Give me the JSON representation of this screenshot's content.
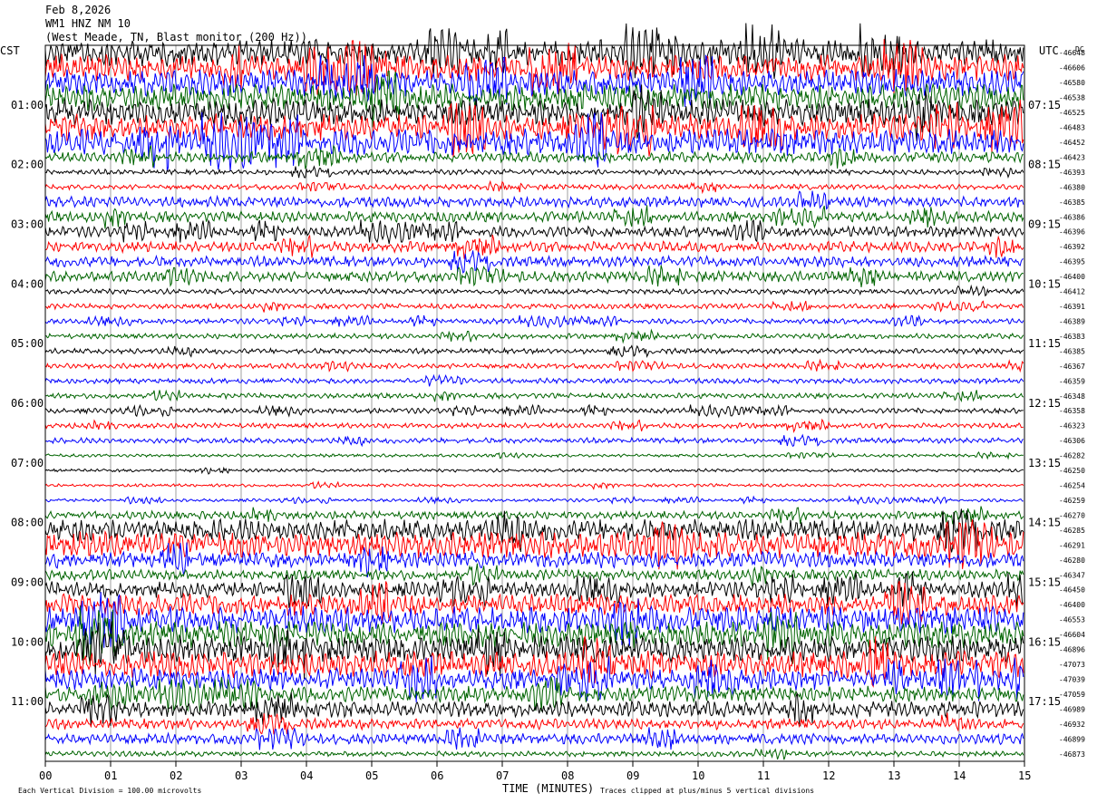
{
  "header": {
    "date": "Feb 8,2026",
    "station": "WM1 HNZ NM 10",
    "location": "(West Meade, TN, Blast monitor (200 Hz))"
  },
  "left_zone": "CST",
  "right_zone": "UTC",
  "dc_label": "DC",
  "footer": {
    "left_note": "Each Vertical Division =  100.00 microvolts",
    "xlabel": "TIME (MINUTES)",
    "right_note": "Traces clipped at plus/minus 5 vertical divisions"
  },
  "colors": [
    "#000000",
    "#ff0000",
    "#0000ff",
    "#006400"
  ],
  "chart_data": {
    "type": "line",
    "xlabel": "TIME (MINUTES)",
    "x_ticks": [
      "00",
      "01",
      "02",
      "03",
      "04",
      "05",
      "06",
      "07",
      "08",
      "09",
      "10",
      "11",
      "12",
      "13",
      "14",
      "15"
    ],
    "xlim": [
      0,
      15
    ],
    "left_hour_labels": [
      "01:00",
      "02:00",
      "03:00",
      "04:00",
      "05:00",
      "06:00",
      "07:00",
      "08:00",
      "09:00",
      "10:00",
      "11:00"
    ],
    "right_hour_labels": [
      "07:15",
      "08:15",
      "09:15",
      "10:15",
      "11:15",
      "12:15",
      "13:15",
      "14:15",
      "15:15",
      "16:15",
      "17:15"
    ],
    "dc_offsets": [
      "-46648",
      "-46606",
      "-46580",
      "-46538",
      "-46525",
      "-46483",
      "-46452",
      "-46423",
      "-46393",
      "-46380",
      "-46385",
      "-46386",
      "-46396",
      "-46392",
      "-46395",
      "-46400",
      "-46412",
      "-46391",
      "-46389",
      "-46383",
      "-46385",
      "-46367",
      "-46359",
      "-46348",
      "-46358",
      "-46323",
      "-46306",
      "-46282",
      "-46250",
      "-46254",
      "-46259",
      "-46270",
      "-46285",
      "-46291",
      "-46280",
      "-46347",
      "-46450",
      "-46400",
      "-46553",
      "-46604",
      "-46896",
      "-47073",
      "-47039",
      "-47059",
      "-46989",
      "-46932",
      "-46899",
      "-46873"
    ],
    "trace_count": 48,
    "trace_amplitude": [
      5,
      5,
      5,
      5,
      5,
      5,
      5,
      2,
      1,
      1,
      2,
      2,
      2,
      2,
      2,
      2,
      1,
      1,
      1,
      1,
      1,
      1,
      1,
      1,
      1,
      1,
      1,
      0.6,
      0.6,
      0.6,
      0.6,
      1.5,
      4,
      5,
      3,
      2,
      3,
      4,
      5,
      5,
      5,
      5,
      4,
      3,
      3,
      2,
      2,
      1
    ]
  }
}
